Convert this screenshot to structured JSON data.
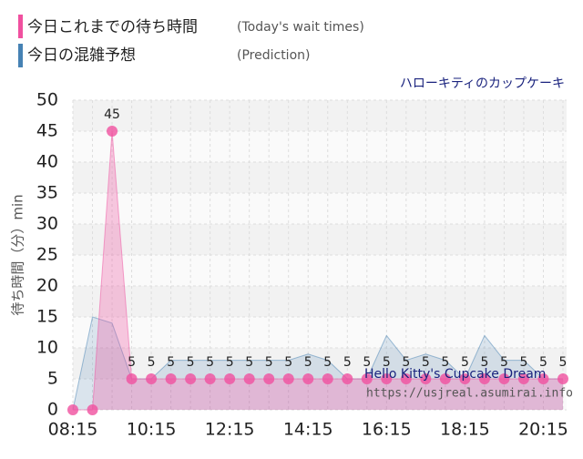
{
  "chart_data": {
    "type": "line",
    "subtitle": "ハローキティのカップケーキ",
    "y_label": "待ち時間（分）min",
    "watermark": [
      "Hello Kitty's Cupcake Dream",
      "https://usjreal.asumirai.info"
    ],
    "categories": [
      "08:15",
      null,
      null,
      null,
      "10:15",
      null,
      null,
      null,
      "12:15",
      null,
      null,
      null,
      "14:15",
      null,
      null,
      null,
      "16:15",
      null,
      null,
      null,
      "18:15",
      null,
      null,
      null,
      "20:15",
      null
    ],
    "series": [
      {
        "name": "今日これまでの待ち時間",
        "note": "(Today's wait times)",
        "color": "#f0509f",
        "values": [
          0,
          0,
          45,
          5,
          5,
          5,
          5,
          5,
          5,
          5,
          5,
          5,
          5,
          5,
          5,
          5,
          5,
          5,
          5,
          5,
          5,
          5,
          5,
          5,
          5,
          5
        ],
        "value_labels": [
          null,
          null,
          "45",
          "5",
          "5",
          "5",
          "5",
          "5",
          "5",
          "5",
          "5",
          "5",
          "5",
          "5",
          "5",
          "5",
          "5",
          "5",
          "5",
          "5",
          "5",
          "5",
          "5",
          "5",
          "5",
          "5"
        ]
      },
      {
        "name": "今日の混雑予想",
        "note": "(Prediction)",
        "color": "#4682b4",
        "values": [
          0,
          15,
          14,
          5,
          5,
          8,
          8,
          8,
          8,
          8,
          8,
          8,
          9,
          8,
          5,
          5,
          12,
          8,
          9,
          8,
          5,
          12,
          8,
          8,
          5,
          5
        ]
      }
    ],
    "ylim": [
      0,
      50
    ],
    "yticks": [
      0,
      5,
      10,
      15,
      20,
      25,
      30,
      35,
      40,
      45,
      50
    ],
    "grid": true
  }
}
